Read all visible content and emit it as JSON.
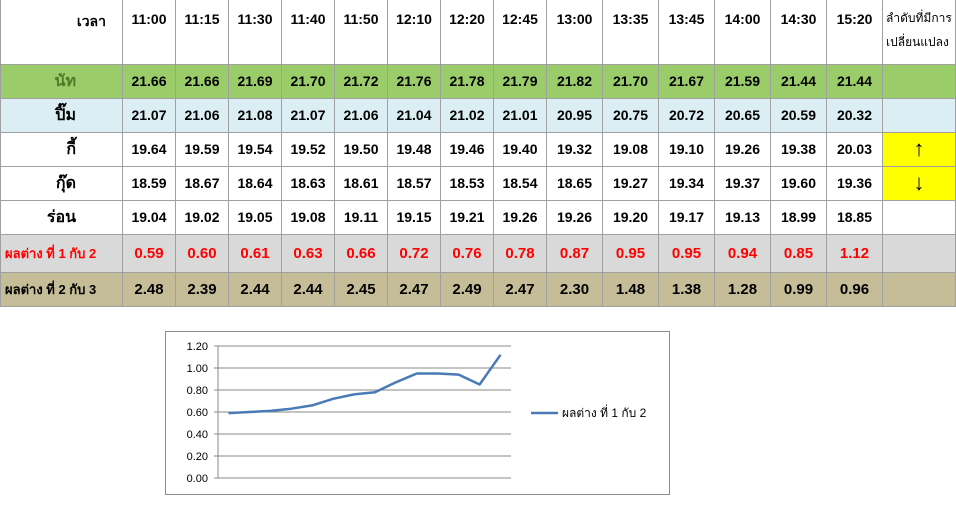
{
  "header": {
    "time_label": "เวลา",
    "note": "ลำดับที่มีการเปลี่ยนแปลง",
    "times": [
      "11:00",
      "11:15",
      "11:30",
      "11:40",
      "11:50",
      "12:10",
      "12:20",
      "12:45",
      "13:00",
      "13:35",
      "13:45",
      "14:00",
      "14:30",
      "15:20"
    ]
  },
  "rows": [
    {
      "label": "นัท",
      "values": [
        "21.66",
        "21.66",
        "21.69",
        "21.70",
        "21.72",
        "21.76",
        "21.78",
        "21.79",
        "21.82",
        "21.70",
        "21.67",
        "21.59",
        "21.44",
        "21.44"
      ],
      "extra": ""
    },
    {
      "label": "ปิ๊ม",
      "values": [
        "21.07",
        "21.06",
        "21.08",
        "21.07",
        "21.06",
        "21.04",
        "21.02",
        "21.01",
        "20.95",
        "20.75",
        "20.72",
        "20.65",
        "20.59",
        "20.32"
      ],
      "extra": ""
    },
    {
      "label": "กี้",
      "values": [
        "19.64",
        "19.59",
        "19.54",
        "19.52",
        "19.50",
        "19.48",
        "19.46",
        "19.40",
        "19.32",
        "19.08",
        "19.10",
        "19.26",
        "19.38",
        "20.03"
      ],
      "extra": "↑"
    },
    {
      "label": "กุ๊ด",
      "values": [
        "18.59",
        "18.67",
        "18.64",
        "18.63",
        "18.61",
        "18.57",
        "18.53",
        "18.54",
        "18.65",
        "19.27",
        "19.34",
        "19.37",
        "19.60",
        "19.36"
      ],
      "extra": "↓"
    },
    {
      "label": "ร่อน",
      "values": [
        "19.04",
        "19.02",
        "19.05",
        "19.08",
        "19.11",
        "19.15",
        "19.21",
        "19.26",
        "19.26",
        "19.20",
        "19.17",
        "19.13",
        "18.99",
        "18.85"
      ],
      "extra": ""
    },
    {
      "label": "ผลต่าง ที่ 1 กับ 2",
      "values": [
        "0.59",
        "0.60",
        "0.61",
        "0.63",
        "0.66",
        "0.72",
        "0.76",
        "0.78",
        "0.87",
        "0.95",
        "0.95",
        "0.94",
        "0.85",
        "1.12"
      ],
      "extra": ""
    },
    {
      "label": "ผลต่าง ที่ 2 กับ 3",
      "values": [
        "2.48",
        "2.39",
        "2.44",
        "2.44",
        "2.45",
        "2.47",
        "2.49",
        "2.47",
        "2.30",
        "1.48",
        "1.38",
        "1.28",
        "0.99",
        "0.96"
      ],
      "extra": ""
    }
  ],
  "colors": {
    "green": "#9bcc6a",
    "blue": "#daeef3",
    "yellow": "#ffff00",
    "gray": "#d9d9d9",
    "tan": "#c4bd97",
    "red": "#ff0000",
    "series": "#4a7ab5"
  },
  "chart_data": {
    "type": "line",
    "title": "",
    "xlabel": "",
    "ylabel": "",
    "ylim": [
      0,
      1.2
    ],
    "yticks": [
      "0.00",
      "0.20",
      "0.40",
      "0.60",
      "0.80",
      "1.00",
      "1.20"
    ],
    "grid": true,
    "legend_position": "right",
    "series": [
      {
        "name": "ผลต่าง ที่ 1 กับ 2",
        "values": [
          0.59,
          0.6,
          0.61,
          0.63,
          0.66,
          0.72,
          0.76,
          0.78,
          0.87,
          0.95,
          0.95,
          0.94,
          0.85,
          1.12
        ]
      }
    ]
  }
}
